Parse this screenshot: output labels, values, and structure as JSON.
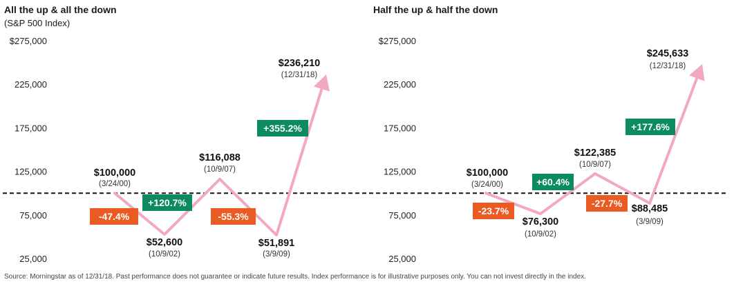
{
  "colors": {
    "line": "#f2a7c3",
    "gain": "#0c8a62",
    "loss": "#ea5b24",
    "baseline": "#111111"
  },
  "source_note": "Source: Morningstar as of 12/31/18. Past performance does not guarantee or indicate future results. Index performance is for illustrative purposes only. You can not invest directly in the index.",
  "chart_data": [
    {
      "type": "line",
      "title": "All the up & all the down",
      "subtitle": "(S&P 500 Index)",
      "ylim": [
        25000,
        275000
      ],
      "y_ticks": [
        "$275,000",
        "225,000",
        "175,000",
        "125,000",
        "75,000",
        "25,000"
      ],
      "y_tick_values": [
        275000,
        225000,
        175000,
        125000,
        75000,
        25000
      ],
      "baseline": 100000,
      "points": [
        {
          "x": "3/24/00",
          "y": 100000,
          "value_label": "$100,000",
          "date_label": "(3/24/00)"
        },
        {
          "x": "10/9/02",
          "y": 52600,
          "value_label": "$52,600",
          "date_label": "(10/9/02)"
        },
        {
          "x": "10/9/07",
          "y": 116088,
          "value_label": "$116,088",
          "date_label": "(10/9/07)"
        },
        {
          "x": "3/9/09",
          "y": 51891,
          "value_label": "$51,891",
          "date_label": "(3/9/09)"
        },
        {
          "x": "12/31/18",
          "y": 236210,
          "value_label": "$236,210",
          "date_label": "(12/31/18)"
        }
      ],
      "changes": [
        {
          "label": "-47.4%",
          "kind": "loss"
        },
        {
          "label": "+120.7%",
          "kind": "gain"
        },
        {
          "label": "-55.3%",
          "kind": "loss"
        },
        {
          "label": "+355.2%",
          "kind": "gain"
        }
      ]
    },
    {
      "type": "line",
      "title": "Half the up & half the down",
      "subtitle": "",
      "ylim": [
        25000,
        275000
      ],
      "y_ticks": [
        "$275,000",
        "225,000",
        "175,000",
        "125,000",
        "75,000",
        "25,000"
      ],
      "y_tick_values": [
        275000,
        225000,
        175000,
        125000,
        75000,
        25000
      ],
      "baseline": 100000,
      "points": [
        {
          "x": "3/24/00",
          "y": 100000,
          "value_label": "$100,000",
          "date_label": "(3/24/00)"
        },
        {
          "x": "10/9/02",
          "y": 76300,
          "value_label": "$76,300",
          "date_label": "(10/9/02)"
        },
        {
          "x": "10/9/07",
          "y": 122385,
          "value_label": "$122,385",
          "date_label": "(10/9/07)"
        },
        {
          "x": "3/9/09",
          "y": 88485,
          "value_label": "$88,485",
          "date_label": "(3/9/09)"
        },
        {
          "x": "12/31/18",
          "y": 245633,
          "value_label": "$245,633",
          "date_label": "(12/31/18)"
        }
      ],
      "changes": [
        {
          "label": "-23.7%",
          "kind": "loss"
        },
        {
          "label": "+60.4%",
          "kind": "gain"
        },
        {
          "label": "-27.7%",
          "kind": "loss"
        },
        {
          "label": "+177.6%",
          "kind": "gain"
        }
      ]
    }
  ]
}
